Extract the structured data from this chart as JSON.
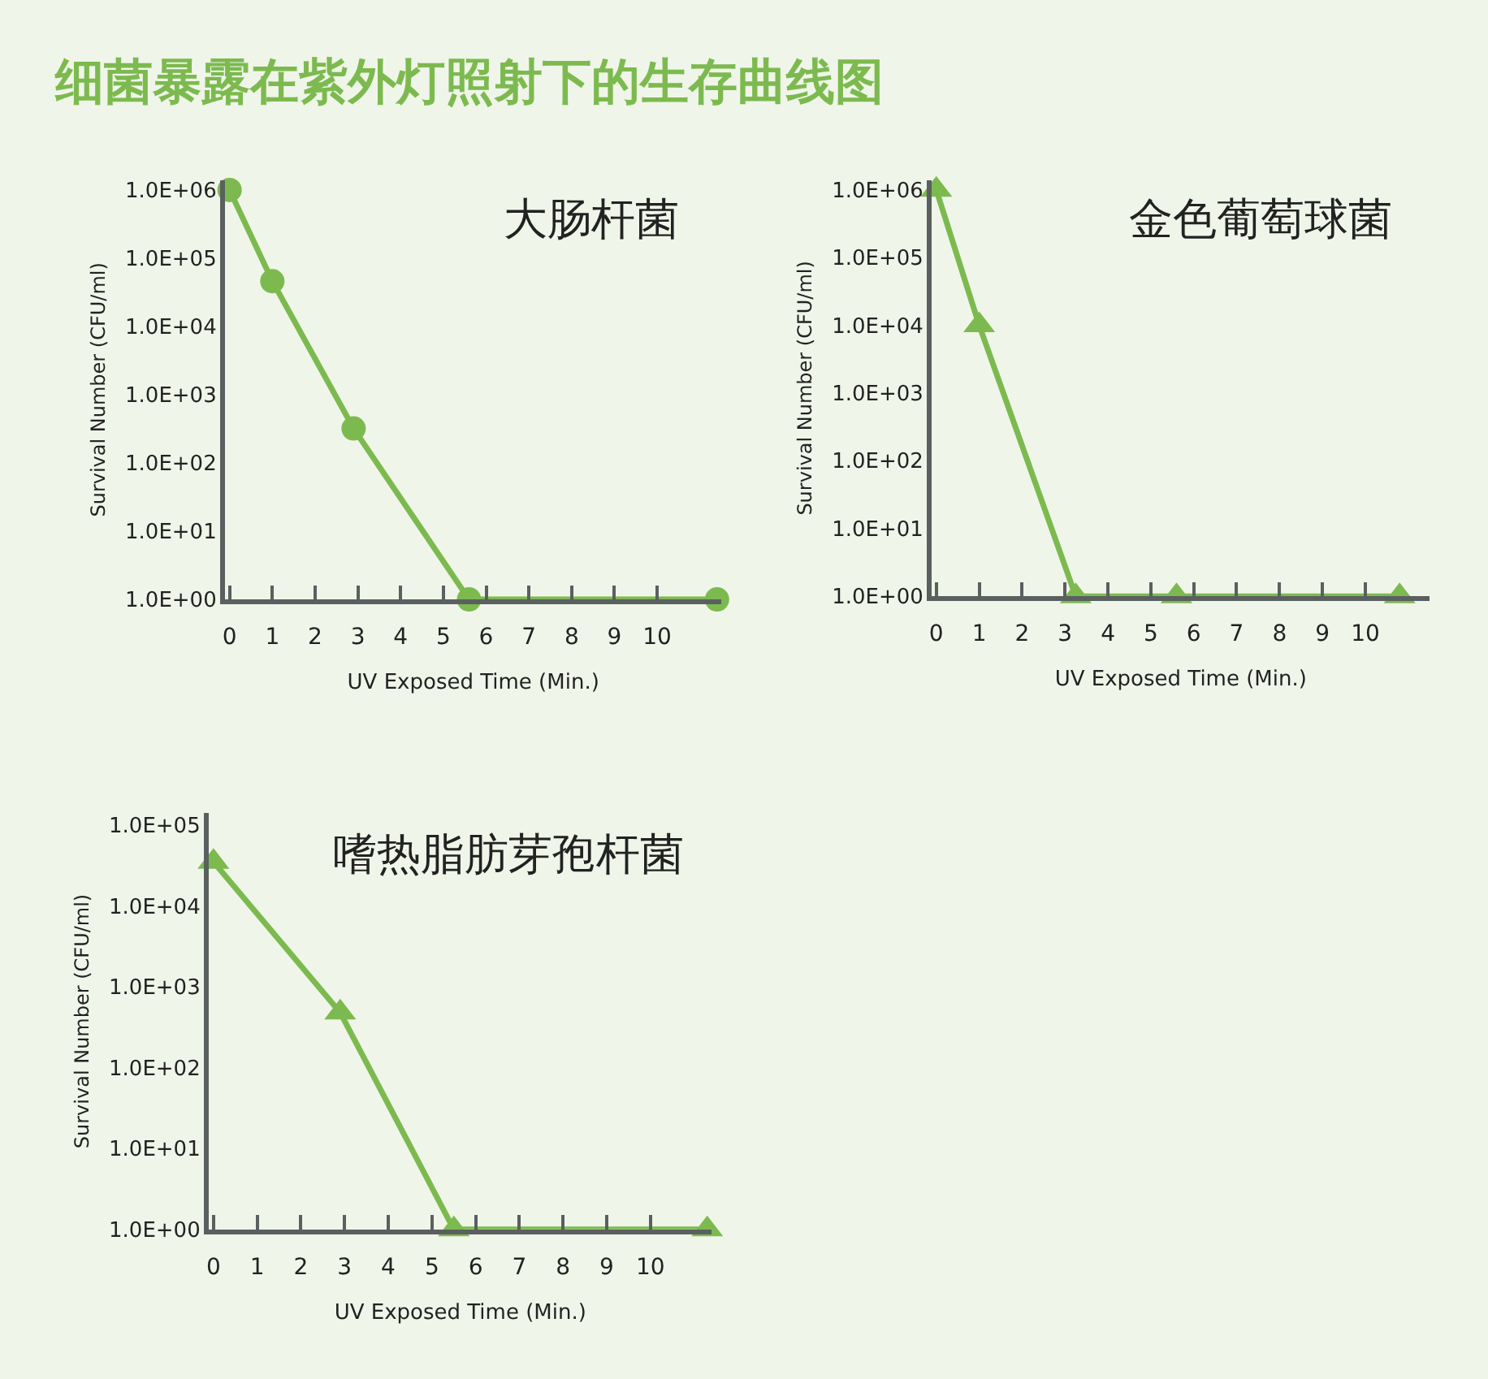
{
  "chart_data": [
    {
      "type": "other",
      "title": "细菌暴露在紫外灯照射下的生存曲线图",
      "color": "#7cba4f"
    },
    {
      "type": "line",
      "title": "大肠杆菌",
      "xlabel": "UV Exposed Time (Min.)",
      "ylabel": "Survival Number (CFU/ml)",
      "log": "y",
      "marker": "circle",
      "x": [
        0,
        1,
        2.9,
        5.6,
        11.4
      ],
      "series": [
        {
          "color": "#7cba4f",
          "values": [
            1000000,
            46000,
            320,
            1,
            1
          ]
        }
      ],
      "xlim": [
        -0.1,
        11.5
      ],
      "xticks": [
        0,
        1,
        2,
        3,
        4,
        5,
        6,
        7,
        8,
        9,
        10
      ],
      "ylim": [
        1,
        1400000
      ],
      "yticks": [
        {
          "value": 1,
          "label": "1.0E+00"
        },
        {
          "value": 10,
          "label": "1.0E+01"
        },
        {
          "value": 100,
          "label": "1.0E+02"
        },
        {
          "value": 1000,
          "label": "1.0E+03"
        },
        {
          "value": 10000,
          "label": "1.0E+04"
        },
        {
          "value": 100000,
          "label": "1.0E+05"
        },
        {
          "value": 1000000,
          "label": "1.0E+06"
        }
      ]
    },
    {
      "type": "line",
      "title": "金色葡萄球菌",
      "xlabel": "UV Exposed Time (Min.)",
      "ylabel": "Survival Number (CFU/ml)",
      "log": "y",
      "marker": "triangle",
      "x": [
        0,
        1,
        3.25,
        5.6,
        10.8
      ],
      "series": [
        {
          "color": "#7cba4f",
          "values": [
            1000000,
            10000,
            1,
            1,
            1
          ]
        }
      ],
      "xlim": [
        -0.1,
        11.5
      ],
      "xticks": [
        0,
        1,
        2,
        3,
        4,
        5,
        6,
        7,
        8,
        9,
        10
      ],
      "ylim": [
        1,
        1400000
      ],
      "yticks": [
        {
          "value": 1,
          "label": "1.0E+00"
        },
        {
          "value": 10,
          "label": "1.0E+01"
        },
        {
          "value": 100,
          "label": "1.0E+02"
        },
        {
          "value": 1000,
          "label": "1.0E+03"
        },
        {
          "value": 10000,
          "label": "1.0E+04"
        },
        {
          "value": 100000,
          "label": "1.0E+05"
        },
        {
          "value": 1000000,
          "label": "1.0E+06"
        }
      ]
    },
    {
      "type": "line",
      "title": "嗜热脂肪芽孢杆菌",
      "xlabel": "UV Exposed Time (Min.)",
      "ylabel": "Survival Number (CFU/ml)",
      "log": "y",
      "marker": "triangle",
      "x": [
        0,
        2.9,
        5.5,
        11.3
      ],
      "series": [
        {
          "color": "#7cba4f",
          "values": [
            35000,
            480,
            1,
            1
          ]
        }
      ],
      "xlim": [
        -0.1,
        11.4
      ],
      "xticks": [
        0,
        1,
        2,
        3,
        4,
        5,
        6,
        7,
        8,
        9,
        10
      ],
      "ylim": [
        1,
        140000
      ],
      "yticks": [
        {
          "value": 1,
          "label": "1.0E+00"
        },
        {
          "value": 10,
          "label": "1.0E+01"
        },
        {
          "value": 100,
          "label": "1.0E+02"
        },
        {
          "value": 1000,
          "label": "1.0E+03"
        },
        {
          "value": 10000,
          "label": "1.0E+04"
        },
        {
          "value": 100000,
          "label": "1.0E+05"
        }
      ]
    }
  ]
}
